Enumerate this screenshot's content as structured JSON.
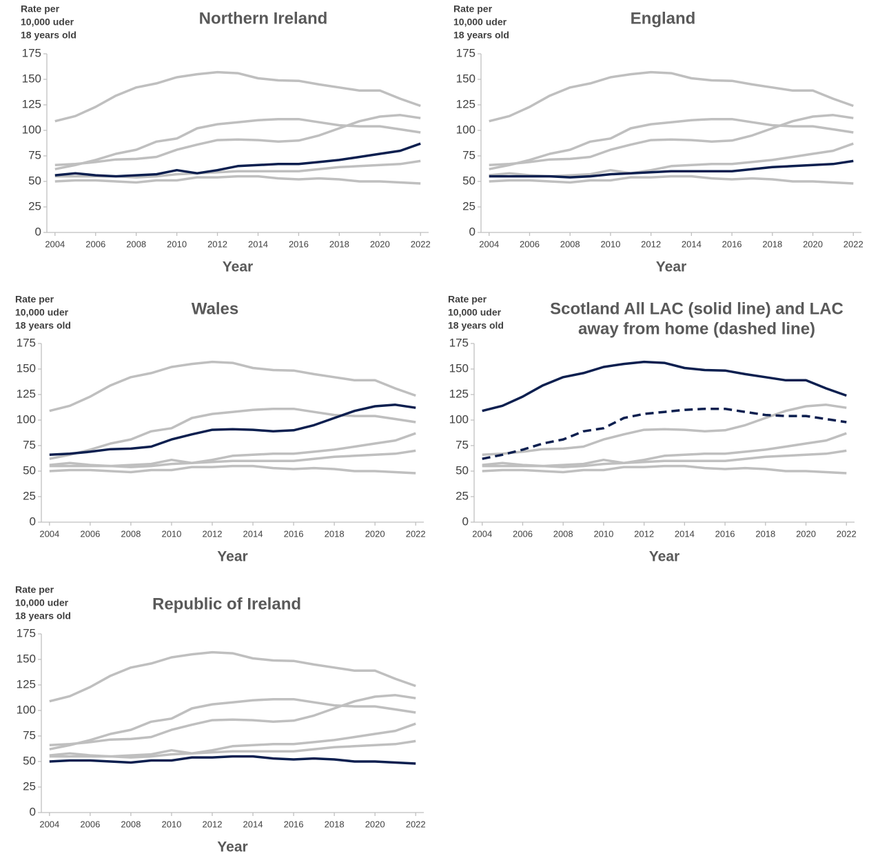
{
  "chart_data": [
    {
      "type": "line",
      "title": [
        "Northern Ireland"
      ],
      "y_label": [
        "Rate per",
        "10,000 uder",
        "18 years old"
      ],
      "x_label": "Year",
      "x": [
        2004,
        2005,
        2006,
        2007,
        2008,
        2009,
        2010,
        2011,
        2012,
        2013,
        2014,
        2015,
        2016,
        2017,
        2018,
        2019,
        2020,
        2021,
        2022
      ],
      "xlim": [
        2003.6,
        2022.4
      ],
      "xticks": [
        2004,
        2006,
        2008,
        2010,
        2012,
        2014,
        2016,
        2018,
        2020,
        2022
      ],
      "ylim": [
        0,
        175
      ],
      "yticks": [
        0,
        25,
        50,
        75,
        100,
        125,
        150,
        175
      ],
      "series": [
        {
          "color": "#bfbfbf",
          "values": [
            109,
            114,
            123,
            134,
            142,
            146,
            152,
            155,
            157,
            156,
            151,
            149,
            148.5,
            145,
            142,
            139,
            139,
            131,
            124
          ]
        },
        {
          "color": "#bfbfbf",
          "values": [
            62,
            66,
            71,
            77,
            81,
            89,
            92,
            102,
            106,
            108,
            110,
            111,
            111,
            108,
            105,
            104,
            104,
            101,
            98
          ]
        },
        {
          "color": "#bfbfbf",
          "values": [
            66,
            67,
            69,
            71.5,
            72,
            74,
            81,
            86,
            90.5,
            91,
            90.5,
            89,
            90,
            95,
            102,
            109,
            113.5,
            115,
            112
          ]
        },
        {
          "color": "#bfbfbf",
          "values": [
            55,
            55,
            55,
            55,
            54,
            55,
            57,
            58,
            59,
            60,
            60,
            60,
            60,
            62,
            64,
            65,
            66,
            67,
            70
          ]
        },
        {
          "color": "#bfbfbf",
          "values": [
            50,
            51,
            51,
            50,
            49,
            51,
            51,
            54,
            54,
            55,
            55,
            53,
            52,
            53,
            52,
            50,
            50,
            49,
            48
          ]
        },
        {
          "color": "#0c1f4f",
          "values": [
            56,
            58,
            56,
            55,
            56,
            57,
            61,
            58,
            61,
            65,
            66,
            67,
            67,
            69,
            71,
            74,
            77,
            80,
            87
          ]
        }
      ]
    },
    {
      "type": "line",
      "title": [
        "England"
      ],
      "y_label": [
        "Rate per",
        "10,000 uder",
        "18 years old"
      ],
      "x_label": "Year",
      "x": [
        2004,
        2005,
        2006,
        2007,
        2008,
        2009,
        2010,
        2011,
        2012,
        2013,
        2014,
        2015,
        2016,
        2017,
        2018,
        2019,
        2020,
        2021,
        2022
      ],
      "xlim": [
        2003.6,
        2022.4
      ],
      "xticks": [
        2004,
        2006,
        2008,
        2010,
        2012,
        2014,
        2016,
        2018,
        2020,
        2022
      ],
      "ylim": [
        0,
        175
      ],
      "yticks": [
        0,
        25,
        50,
        75,
        100,
        125,
        150,
        175
      ],
      "series": [
        {
          "color": "#bfbfbf",
          "values": [
            109,
            114,
            123,
            134,
            142,
            146,
            152,
            155,
            157,
            156,
            151,
            149,
            148.5,
            145,
            142,
            139,
            139,
            131,
            124
          ]
        },
        {
          "color": "#bfbfbf",
          "values": [
            62,
            66,
            71,
            77,
            81,
            89,
            92,
            102,
            106,
            108,
            110,
            111,
            111,
            108,
            105,
            104,
            104,
            101,
            98
          ]
        },
        {
          "color": "#bfbfbf",
          "values": [
            66,
            67,
            69,
            71.5,
            72,
            74,
            81,
            86,
            90.5,
            91,
            90.5,
            89,
            90,
            95,
            102,
            109,
            113.5,
            115,
            112
          ]
        },
        {
          "color": "#bfbfbf",
          "values": [
            56,
            58,
            56,
            55,
            56,
            57,
            61,
            58,
            61,
            65,
            66,
            67,
            67,
            69,
            71,
            74,
            77,
            80,
            87
          ]
        },
        {
          "color": "#bfbfbf",
          "values": [
            50,
            51,
            51,
            50,
            49,
            51,
            51,
            54,
            54,
            55,
            55,
            53,
            52,
            53,
            52,
            50,
            50,
            49,
            48
          ]
        },
        {
          "color": "#0c1f4f",
          "values": [
            55,
            55,
            55,
            55,
            54,
            55,
            57,
            58,
            59,
            60,
            60,
            60,
            60,
            62,
            64,
            65,
            66,
            67,
            70
          ]
        }
      ]
    },
    {
      "type": "line",
      "title": [
        "Wales"
      ],
      "y_label": [
        "Rate per",
        "10,000 uder",
        "18 years old"
      ],
      "x_label": "Year",
      "x": [
        2004,
        2005,
        2006,
        2007,
        2008,
        2009,
        2010,
        2011,
        2012,
        2013,
        2014,
        2015,
        2016,
        2017,
        2018,
        2019,
        2020,
        2021,
        2022
      ],
      "xlim": [
        2003.6,
        2022.4
      ],
      "xticks": [
        2004,
        2006,
        2008,
        2010,
        2012,
        2014,
        2016,
        2018,
        2020,
        2022
      ],
      "ylim": [
        0,
        175
      ],
      "yticks": [
        0,
        25,
        50,
        75,
        100,
        125,
        150,
        175
      ],
      "series": [
        {
          "color": "#bfbfbf",
          "values": [
            109,
            114,
            123,
            134,
            142,
            146,
            152,
            155,
            157,
            156,
            151,
            149,
            148.5,
            145,
            142,
            139,
            139,
            131,
            124
          ]
        },
        {
          "color": "#bfbfbf",
          "values": [
            62,
            66,
            71,
            77,
            81,
            89,
            92,
            102,
            106,
            108,
            110,
            111,
            111,
            108,
            105,
            104,
            104,
            101,
            98
          ]
        },
        {
          "color": "#bfbfbf",
          "values": [
            56,
            58,
            56,
            55,
            56,
            57,
            61,
            58,
            61,
            65,
            66,
            67,
            67,
            69,
            71,
            74,
            77,
            80,
            87
          ]
        },
        {
          "color": "#bfbfbf",
          "values": [
            55,
            55,
            55,
            55,
            54,
            55,
            57,
            58,
            59,
            60,
            60,
            60,
            60,
            62,
            64,
            65,
            66,
            67,
            70
          ]
        },
        {
          "color": "#bfbfbf",
          "values": [
            50,
            51,
            51,
            50,
            49,
            51,
            51,
            54,
            54,
            55,
            55,
            53,
            52,
            53,
            52,
            50,
            50,
            49,
            48
          ]
        },
        {
          "color": "#0c1f4f",
          "values": [
            66,
            67,
            69,
            71.5,
            72,
            74,
            81,
            86,
            90.5,
            91,
            90.5,
            89,
            90,
            95,
            102,
            109,
            113.5,
            115,
            112
          ]
        }
      ]
    },
    {
      "type": "line",
      "title": [
        "Scotland All LAC (solid line) and LAC",
        "away from home (dashed line)"
      ],
      "y_label": [
        "Rate per",
        "10,000 uder",
        "18 years old"
      ],
      "x_label": "Year",
      "x": [
        2004,
        2005,
        2006,
        2007,
        2008,
        2009,
        2010,
        2011,
        2012,
        2013,
        2014,
        2015,
        2016,
        2017,
        2018,
        2019,
        2020,
        2021,
        2022
      ],
      "xlim": [
        2003.6,
        2022.4
      ],
      "xticks": [
        2004,
        2006,
        2008,
        2010,
        2012,
        2014,
        2016,
        2018,
        2020,
        2022
      ],
      "ylim": [
        0,
        175
      ],
      "yticks": [
        0,
        25,
        50,
        75,
        100,
        125,
        150,
        175
      ],
      "series": [
        {
          "color": "#bfbfbf",
          "values": [
            66,
            67,
            69,
            71.5,
            72,
            74,
            81,
            86,
            90.5,
            91,
            90.5,
            89,
            90,
            95,
            102,
            109,
            113.5,
            115,
            112
          ]
        },
        {
          "color": "#bfbfbf",
          "values": [
            56,
            58,
            56,
            55,
            56,
            57,
            61,
            58,
            61,
            65,
            66,
            67,
            67,
            69,
            71,
            74,
            77,
            80,
            87
          ]
        },
        {
          "color": "#bfbfbf",
          "values": [
            55,
            55,
            55,
            55,
            54,
            55,
            57,
            58,
            59,
            60,
            60,
            60,
            60,
            62,
            64,
            65,
            66,
            67,
            70
          ]
        },
        {
          "color": "#bfbfbf",
          "values": [
            50,
            51,
            51,
            50,
            49,
            51,
            51,
            54,
            54,
            55,
            55,
            53,
            52,
            53,
            52,
            50,
            50,
            49,
            48
          ]
        },
        {
          "color": "#0c1f4f",
          "values": [
            109,
            114,
            123,
            134,
            142,
            146,
            152,
            155,
            157,
            156,
            151,
            149,
            148.5,
            145,
            142,
            139,
            139,
            131,
            124
          ]
        },
        {
          "color": "#0c1f4f",
          "dashed": true,
          "values": [
            62,
            66,
            71,
            77,
            81,
            89,
            92,
            102,
            106,
            108,
            110,
            111,
            111,
            108,
            105,
            104,
            104,
            101,
            98
          ]
        }
      ]
    },
    {
      "type": "line",
      "title": [
        "Republic of Ireland"
      ],
      "y_label": [
        "Rate per",
        "10,000 uder",
        "18 years old"
      ],
      "x_label": "Year",
      "x": [
        2004,
        2005,
        2006,
        2007,
        2008,
        2009,
        2010,
        2011,
        2012,
        2013,
        2014,
        2015,
        2016,
        2017,
        2018,
        2019,
        2020,
        2021,
        2022
      ],
      "xlim": [
        2003.6,
        2022.4
      ],
      "xticks": [
        2004,
        2006,
        2008,
        2010,
        2012,
        2014,
        2016,
        2018,
        2020,
        2022
      ],
      "ylim": [
        0,
        175
      ],
      "yticks": [
        0,
        25,
        50,
        75,
        100,
        125,
        150,
        175
      ],
      "series": [
        {
          "color": "#bfbfbf",
          "values": [
            109,
            114,
            123,
            134,
            142,
            146,
            152,
            155,
            157,
            156,
            151,
            149,
            148.5,
            145,
            142,
            139,
            139,
            131,
            124
          ]
        },
        {
          "color": "#bfbfbf",
          "values": [
            62,
            66,
            71,
            77,
            81,
            89,
            92,
            102,
            106,
            108,
            110,
            111,
            111,
            108,
            105,
            104,
            104,
            101,
            98
          ]
        },
        {
          "color": "#bfbfbf",
          "values": [
            66,
            67,
            69,
            71.5,
            72,
            74,
            81,
            86,
            90.5,
            91,
            90.5,
            89,
            90,
            95,
            102,
            109,
            113.5,
            115,
            112
          ]
        },
        {
          "color": "#bfbfbf",
          "values": [
            56,
            58,
            56,
            55,
            56,
            57,
            61,
            58,
            61,
            65,
            66,
            67,
            67,
            69,
            71,
            74,
            77,
            80,
            87
          ]
        },
        {
          "color": "#bfbfbf",
          "values": [
            55,
            55,
            55,
            55,
            54,
            55,
            57,
            58,
            59,
            60,
            60,
            60,
            60,
            62,
            64,
            65,
            66,
            67,
            70
          ]
        },
        {
          "color": "#0c1f4f",
          "values": [
            50,
            51,
            51,
            50,
            49,
            51,
            51,
            54,
            54,
            55,
            55,
            53,
            52,
            53,
            52,
            50,
            50,
            49,
            48
          ]
        }
      ]
    }
  ]
}
